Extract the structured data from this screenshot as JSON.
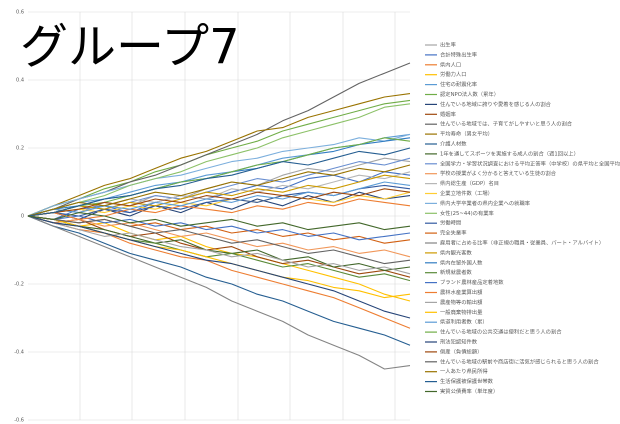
{
  "chart_data": {
    "type": "line",
    "title": "グループ7",
    "categories": [
      null,
      null,
      null,
      null,
      null,
      null,
      null,
      null,
      null,
      null,
      null,
      null,
      null,
      null,
      null,
      null
    ],
    "ylim": [
      -0.6,
      0.6
    ],
    "yticks": [
      0.6,
      0.4,
      0.2,
      0,
      -0.2,
      -0.4,
      -0.6
    ],
    "grid": true,
    "series": [
      {
        "name": "出生率",
        "color": "#a5a5a5",
        "values": [
          0,
          0.02,
          0.01,
          0.04,
          0.03,
          0.06,
          0.05,
          0.08,
          0.1,
          0.09,
          0.12,
          0.14,
          0.13,
          0.15,
          0.17,
          0.16
        ]
      },
      {
        "name": "合計特殊出生率",
        "color": "#4472c4",
        "values": [
          0,
          -0.01,
          0.02,
          0.03,
          0.01,
          0.04,
          0.06,
          0.05,
          0.07,
          0.09,
          0.08,
          0.11,
          0.12,
          0.1,
          0.13,
          0.12
        ]
      },
      {
        "name": "県内人口",
        "color": "#ed7d31",
        "values": [
          0,
          -0.02,
          -0.04,
          -0.05,
          -0.08,
          -0.1,
          -0.12,
          -0.13,
          -0.16,
          -0.18,
          -0.2,
          -0.22,
          -0.24,
          -0.27,
          -0.3,
          -0.33
        ]
      },
      {
        "name": "労働力人口",
        "color": "#ffc000",
        "values": [
          0,
          -0.01,
          -0.03,
          -0.02,
          -0.05,
          -0.07,
          -0.06,
          -0.09,
          -0.11,
          -0.12,
          -0.14,
          -0.16,
          -0.18,
          -0.2,
          -0.23,
          -0.25
        ]
      },
      {
        "name": "住宅の耐震化率",
        "color": "#5b9bd5",
        "values": [
          0,
          0.02,
          0.04,
          0.05,
          0.07,
          0.09,
          0.1,
          0.12,
          0.13,
          0.15,
          0.17,
          0.18,
          0.2,
          0.21,
          0.23,
          0.24
        ]
      },
      {
        "name": "認定NPO法人数（累年）",
        "color": "#70ad47",
        "values": [
          0,
          0.03,
          0.05,
          0.08,
          0.1,
          0.13,
          0.15,
          0.18,
          0.2,
          0.22,
          0.25,
          0.27,
          0.29,
          0.31,
          0.33,
          0.34
        ]
      },
      {
        "name": "住んでいる地域に誇りや愛着を感じる人の割合",
        "color": "#264478",
        "values": [
          0,
          0.01,
          -0.01,
          0.02,
          0,
          0.03,
          0.01,
          0.04,
          0.02,
          0.05,
          0.03,
          0.06,
          0.04,
          0.07,
          0.05,
          0.06
        ]
      },
      {
        "name": "婚姻率",
        "color": "#9e480e",
        "values": [
          0,
          -0.02,
          -0.01,
          -0.04,
          -0.06,
          -0.05,
          -0.08,
          -0.1,
          -0.09,
          -0.12,
          -0.14,
          -0.13,
          -0.15,
          -0.17,
          -0.16,
          -0.18
        ]
      },
      {
        "name": "住んでいる地域では、子育てがしやすいと思う人の割合",
        "color": "#636363",
        "values": [
          0,
          0.02,
          0.05,
          0.07,
          0.1,
          0.12,
          0.15,
          0.18,
          0.21,
          0.24,
          0.28,
          0.31,
          0.35,
          0.39,
          0.42,
          0.45
        ]
      },
      {
        "name": "平均寿命（男女平均）",
        "color": "#997300",
        "values": [
          0,
          0.03,
          0.06,
          0.09,
          0.11,
          0.14,
          0.17,
          0.19,
          0.22,
          0.25,
          0.26,
          0.29,
          0.31,
          0.33,
          0.35,
          0.36
        ]
      },
      {
        "name": "介護人材数",
        "color": "#255e91",
        "values": [
          0,
          -0.03,
          -0.05,
          -0.08,
          -0.11,
          -0.13,
          -0.15,
          -0.18,
          -0.2,
          -0.23,
          -0.25,
          -0.28,
          -0.31,
          -0.33,
          -0.35,
          -0.38
        ]
      },
      {
        "name": "1年を通してスポーツを実施する成人の割合（週1回以上）",
        "color": "#43682b",
        "values": [
          0,
          -0.01,
          -0.03,
          -0.04,
          -0.06,
          -0.08,
          -0.07,
          -0.1,
          -0.11,
          -0.1,
          -0.13,
          -0.12,
          -0.15,
          -0.14,
          -0.16,
          -0.15
        ]
      },
      {
        "name": "全国学力・学習状況調査における平均正答率（中学校）の県平均と全国平均との差",
        "color": "#698ed0",
        "values": [
          0,
          0.01,
          0.03,
          0.02,
          0.04,
          0.06,
          0.05,
          0.07,
          0.09,
          0.11,
          0.1,
          0.12,
          0.14,
          0.16,
          0.15,
          0.17
        ]
      },
      {
        "name": "学校の授業がよく分かると答えている生徒の割合",
        "color": "#f1975a",
        "values": [
          0,
          -0.02,
          -0.01,
          -0.03,
          -0.02,
          -0.04,
          -0.06,
          -0.05,
          -0.07,
          -0.09,
          -0.08,
          -0.1,
          -0.09,
          -0.11,
          -0.1,
          -0.12
        ]
      },
      {
        "name": "県内総生産（GDP）名目",
        "color": "#b7b7b7",
        "values": [
          0,
          0.02,
          0.01,
          0.03,
          0.05,
          0.04,
          0.06,
          0.05,
          0.08,
          0.07,
          0.09,
          0.08,
          0.1,
          0.12,
          0.11,
          0.13
        ]
      },
      {
        "name": "企業立地件数（工場）",
        "color": "#ffcd33",
        "values": [
          0,
          0.01,
          0.02,
          0.01,
          0.03,
          0.02,
          0.04,
          0.03,
          0.05,
          0.04,
          0.06,
          0.05,
          0.04,
          0.06,
          0.05,
          0.07
        ]
      },
      {
        "name": "県内大学卒業者の県内企業への就職率",
        "color": "#7cafdd",
        "values": [
          0,
          0.03,
          0.05,
          0.07,
          0.09,
          0.11,
          0.12,
          0.14,
          0.16,
          0.17,
          0.19,
          0.2,
          0.21,
          0.23,
          0.22,
          0.24
        ]
      },
      {
        "name": "女性(25~44)の有業率",
        "color": "#8cc168",
        "values": [
          0,
          0.02,
          0.04,
          0.06,
          0.09,
          0.11,
          0.13,
          0.16,
          0.18,
          0.2,
          0.23,
          0.25,
          0.27,
          0.29,
          0.32,
          0.33
        ]
      },
      {
        "name": "労働時間",
        "color": "#335aa1",
        "values": [
          0,
          0.01,
          0,
          0.02,
          0.01,
          0.03,
          0.02,
          0.04,
          0.05,
          0.04,
          0.06,
          0.07,
          0.06,
          0.08,
          0.09,
          0.08
        ]
      },
      {
        "name": "完全失業率",
        "color": "#d26012",
        "values": [
          0,
          -0.01,
          -0.02,
          -0.01,
          -0.03,
          -0.02,
          -0.04,
          -0.03,
          -0.05,
          -0.04,
          -0.06,
          -0.05,
          -0.07,
          -0.06,
          -0.08,
          -0.07
        ]
      },
      {
        "name": "雇用者に占める比率（非正規の職員・従業員、パート・アルバイト）",
        "color": "#848484",
        "values": [
          0,
          -0.03,
          -0.06,
          -0.09,
          -0.12,
          -0.15,
          -0.18,
          -0.21,
          -0.25,
          -0.28,
          -0.31,
          -0.35,
          -0.38,
          -0.41,
          -0.45,
          -0.44
        ]
      },
      {
        "name": "県内観光客数",
        "color": "#cc9a00",
        "values": [
          0,
          0.01,
          0.03,
          0.02,
          0.04,
          0.03,
          0.05,
          0.07,
          0.06,
          0.08,
          0.07,
          0.09,
          0.08,
          0.1,
          0.12,
          0.11
        ]
      },
      {
        "name": "県内在留外国人数",
        "color": "#327dc2",
        "values": [
          0,
          0.02,
          0.03,
          0.05,
          0.06,
          0.08,
          0.1,
          0.11,
          0.13,
          0.14,
          0.16,
          0.18,
          0.19,
          0.21,
          0.22,
          0.23
        ]
      },
      {
        "name": "新規就農者数",
        "color": "#5a8a39",
        "values": [
          0,
          -0.02,
          -0.03,
          -0.05,
          -0.07,
          -0.08,
          -0.1,
          -0.12,
          -0.11,
          -0.13,
          -0.15,
          -0.14,
          -0.16,
          -0.18,
          -0.17,
          -0.19
        ]
      },
      {
        "name": "ブランド農林産品定着地数",
        "color": "#4472c4",
        "values": [
          0,
          -0.01,
          0,
          -0.02,
          -0.01,
          -0.03,
          -0.02,
          -0.04,
          -0.03,
          -0.05,
          -0.04,
          -0.06,
          -0.05,
          -0.07,
          -0.06,
          -0.05
        ]
      },
      {
        "name": "農林水産業算出額",
        "color": "#ed7d31",
        "values": [
          0,
          0.01,
          -0.01,
          0,
          0.02,
          0.01,
          0.03,
          0.02,
          0.01,
          0.03,
          0.02,
          0.04,
          0.03,
          0.05,
          0.04,
          0.03
        ]
      },
      {
        "name": "農産物等の輸出額",
        "color": "#a5a5a5",
        "values": [
          0,
          -0.02,
          -0.04,
          -0.06,
          -0.05,
          -0.07,
          -0.09,
          -0.1,
          -0.12,
          -0.11,
          -0.13,
          -0.15,
          -0.14,
          -0.16,
          -0.15,
          -0.17
        ]
      },
      {
        "name": "一般廃棄物排出量",
        "color": "#ffc000",
        "values": [
          0,
          -0.01,
          -0.03,
          -0.05,
          -0.07,
          -0.09,
          -0.1,
          -0.12,
          -0.14,
          -0.16,
          -0.18,
          -0.19,
          -0.21,
          -0.22,
          -0.24,
          -0.23
        ]
      },
      {
        "name": "県道利用者数（累）",
        "color": "#5b9bd5",
        "values": [
          0,
          0.02,
          0.01,
          0.03,
          0.02,
          0.04,
          0.03,
          0.05,
          0.04,
          0.06,
          0.05,
          0.07,
          0.06,
          0.08,
          0.1,
          0.09
        ]
      },
      {
        "name": "住んでいる地域の公共交通は便利だと思う人の割合",
        "color": "#70ad47",
        "values": [
          0,
          0.01,
          0.03,
          0.04,
          0.06,
          0.08,
          0.1,
          0.11,
          0.13,
          0.15,
          0.16,
          0.18,
          0.2,
          0.21,
          0.23,
          0.22
        ]
      },
      {
        "name": "刑法犯認知件数",
        "color": "#264478",
        "values": [
          0,
          -0.02,
          -0.03,
          -0.05,
          -0.07,
          -0.09,
          -0.11,
          -0.13,
          -0.14,
          -0.16,
          -0.18,
          -0.2,
          -0.22,
          -0.25,
          -0.28,
          -0.3
        ]
      },
      {
        "name": "倒産（負債総額）",
        "color": "#9e480e",
        "values": [
          0,
          0.01,
          0.02,
          0.04,
          0.03,
          0.05,
          0.04,
          0.06,
          0.05,
          0.07,
          0.06,
          0.05,
          0.07,
          0.06,
          0.08,
          0.07
        ]
      },
      {
        "name": "住んでいる地域の駅前や商店街に活気が感じられると思う人の割合",
        "color": "#636363",
        "values": [
          0,
          -0.01,
          -0.02,
          -0.01,
          -0.03,
          -0.05,
          -0.04,
          -0.06,
          -0.08,
          -0.07,
          -0.09,
          -0.11,
          -0.1,
          -0.12,
          -0.14,
          -0.13
        ]
      },
      {
        "name": "一人あたり県民所得",
        "color": "#997300",
        "values": [
          0,
          0.02,
          0.04,
          0.03,
          0.05,
          0.07,
          0.06,
          0.08,
          0.1,
          0.09,
          0.11,
          0.13,
          0.12,
          0.14,
          0.13,
          0.15
        ]
      },
      {
        "name": "生活保護被保護世帯数",
        "color": "#255e91",
        "values": [
          0,
          0.01,
          0.03,
          0.05,
          0.06,
          0.08,
          0.09,
          0.11,
          0.12,
          0.14,
          0.16,
          0.15,
          0.17,
          0.19,
          0.18,
          0.2
        ]
      },
      {
        "name": "実質公債費率（単年度）",
        "color": "#43682b",
        "values": [
          0,
          -0.01,
          0.01,
          0,
          -0.02,
          -0.01,
          -0.03,
          -0.02,
          -0.01,
          -0.03,
          -0.02,
          -0.04,
          -0.03,
          -0.02,
          -0.04,
          -0.03
        ]
      }
    ]
  }
}
